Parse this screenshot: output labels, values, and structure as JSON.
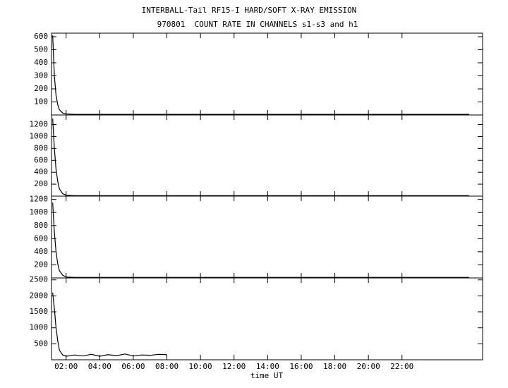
{
  "title": "INTERBALL-Tail RF15-I HARD/SOFT X-RAY EMISSION",
  "subtitle": "970801  COUNT RATE IN CHANNELS s1-s3 and h1",
  "xlabel": "time UT",
  "chart_data": [
    {
      "type": "line",
      "x": [
        1.2,
        1.3,
        1.4,
        1.5,
        1.6,
        1.8,
        2,
        2.5,
        3,
        3.5,
        4,
        4.5,
        5,
        5.5,
        6,
        6.5,
        7,
        7.5,
        8,
        9,
        10,
        11,
        12,
        13,
        14,
        15,
        16,
        17,
        18,
        19,
        20,
        21,
        22,
        23,
        24,
        25,
        26
      ],
      "series": [
        {
          "color": "#000000",
          "values": [
            610,
            300,
            150,
            80,
            40,
            15,
            8,
            5,
            5,
            5,
            5,
            5,
            5,
            5,
            5,
            5,
            5,
            5,
            5,
            5,
            5,
            5,
            5,
            5,
            5,
            5,
            5,
            5,
            5,
            5,
            5,
            5,
            5,
            5,
            5,
            5,
            5
          ]
        }
      ],
      "xlim": [
        1.13,
        26.8
      ],
      "ylim": [
        0,
        627
      ],
      "xticks": [
        2,
        4,
        6,
        8,
        10,
        12,
        14,
        16,
        18,
        20,
        22
      ],
      "yticks": [
        100,
        200,
        300,
        400,
        500,
        600
      ]
    },
    {
      "type": "line",
      "x": [
        1.2,
        1.3,
        1.4,
        1.5,
        1.6,
        1.8,
        2,
        2.5,
        3,
        3.5,
        4,
        4.5,
        5,
        5.5,
        6,
        6.5,
        7,
        7.5,
        8,
        9,
        10,
        11,
        12,
        13,
        14,
        15,
        16,
        17,
        18,
        19,
        20,
        21,
        22,
        23,
        24,
        25,
        26
      ],
      "series": [
        {
          "color": "#000000",
          "values": [
            1300,
            800,
            450,
            250,
            120,
            40,
            15,
            8,
            8,
            8,
            8,
            8,
            8,
            8,
            8,
            8,
            8,
            8,
            8,
            8,
            8,
            8,
            8,
            8,
            8,
            8,
            8,
            8,
            8,
            8,
            8,
            8,
            8,
            8,
            8,
            8,
            8
          ]
        }
      ],
      "xlim": [
        1.13,
        26.8
      ],
      "ylim": [
        0,
        1360
      ],
      "xticks": [
        2,
        4,
        6,
        8,
        10,
        12,
        14,
        16,
        18,
        20,
        22
      ],
      "yticks": [
        200,
        400,
        600,
        800,
        1000,
        1200
      ]
    },
    {
      "type": "line",
      "x": [
        1.2,
        1.3,
        1.4,
        1.5,
        1.6,
        1.8,
        2,
        2.5,
        3,
        3.5,
        4,
        4.5,
        5,
        5.5,
        6,
        6.5,
        7,
        7.5,
        8,
        9,
        10,
        11,
        12,
        13,
        14,
        15,
        16,
        17,
        18,
        19,
        20,
        21,
        22,
        23,
        24,
        25,
        26
      ],
      "series": [
        {
          "color": "#000000",
          "values": [
            1150,
            700,
            400,
            220,
            110,
            40,
            15,
            8,
            8,
            8,
            8,
            8,
            8,
            8,
            8,
            8,
            8,
            8,
            8,
            8,
            8,
            8,
            8,
            8,
            8,
            8,
            8,
            8,
            8,
            8,
            8,
            8,
            8,
            8,
            8,
            8,
            8
          ]
        }
      ],
      "xlim": [
        1.13,
        26.8
      ],
      "ylim": [
        0,
        1250
      ],
      "xticks": [
        2,
        4,
        6,
        8,
        10,
        12,
        14,
        16,
        18,
        20,
        22
      ],
      "yticks": [
        200,
        400,
        600,
        800,
        1000,
        1200
      ]
    },
    {
      "type": "line",
      "x": [
        1.2,
        1.3,
        1.4,
        1.5,
        1.6,
        1.8,
        2,
        2.5,
        3,
        3.5,
        4,
        4.5,
        5,
        5.5,
        6,
        6.5,
        7,
        7.5,
        8,
        9,
        10,
        11,
        12,
        13,
        14,
        15,
        16,
        17,
        18,
        19,
        20,
        21,
        22,
        23,
        24,
        25,
        26
      ],
      "series": [
        {
          "color": "#000000",
          "values": [
            2100,
            1600,
            1000,
            600,
            300,
            150,
            110,
            150,
            120,
            170,
            110,
            160,
            130,
            180,
            120,
            150,
            140,
            170,
            160,
            null,
            null,
            null,
            null,
            null,
            null,
            null,
            null,
            null,
            null,
            null,
            null,
            null,
            null,
            null,
            null,
            null,
            null
          ]
        }
      ],
      "xlim": [
        1.13,
        26.8
      ],
      "ylim": [
        0,
        2560
      ],
      "xticks": [
        {
          "value": 2,
          "label": "02:00"
        },
        {
          "value": 4,
          "label": "04:00"
        },
        {
          "value": 6,
          "label": "06:00"
        },
        {
          "value": 8,
          "label": "08:00"
        },
        {
          "value": 10,
          "label": "10:00"
        },
        {
          "value": 12,
          "label": "12:00"
        },
        {
          "value": 14,
          "label": "14:00"
        },
        {
          "value": 16,
          "label": "16:00"
        },
        {
          "value": 18,
          "label": "18:00"
        },
        {
          "value": 20,
          "label": "20:00"
        },
        {
          "value": 22,
          "label": "22:00"
        }
      ],
      "yticks": [
        500,
        1000,
        1500,
        2000,
        2500
      ]
    }
  ]
}
